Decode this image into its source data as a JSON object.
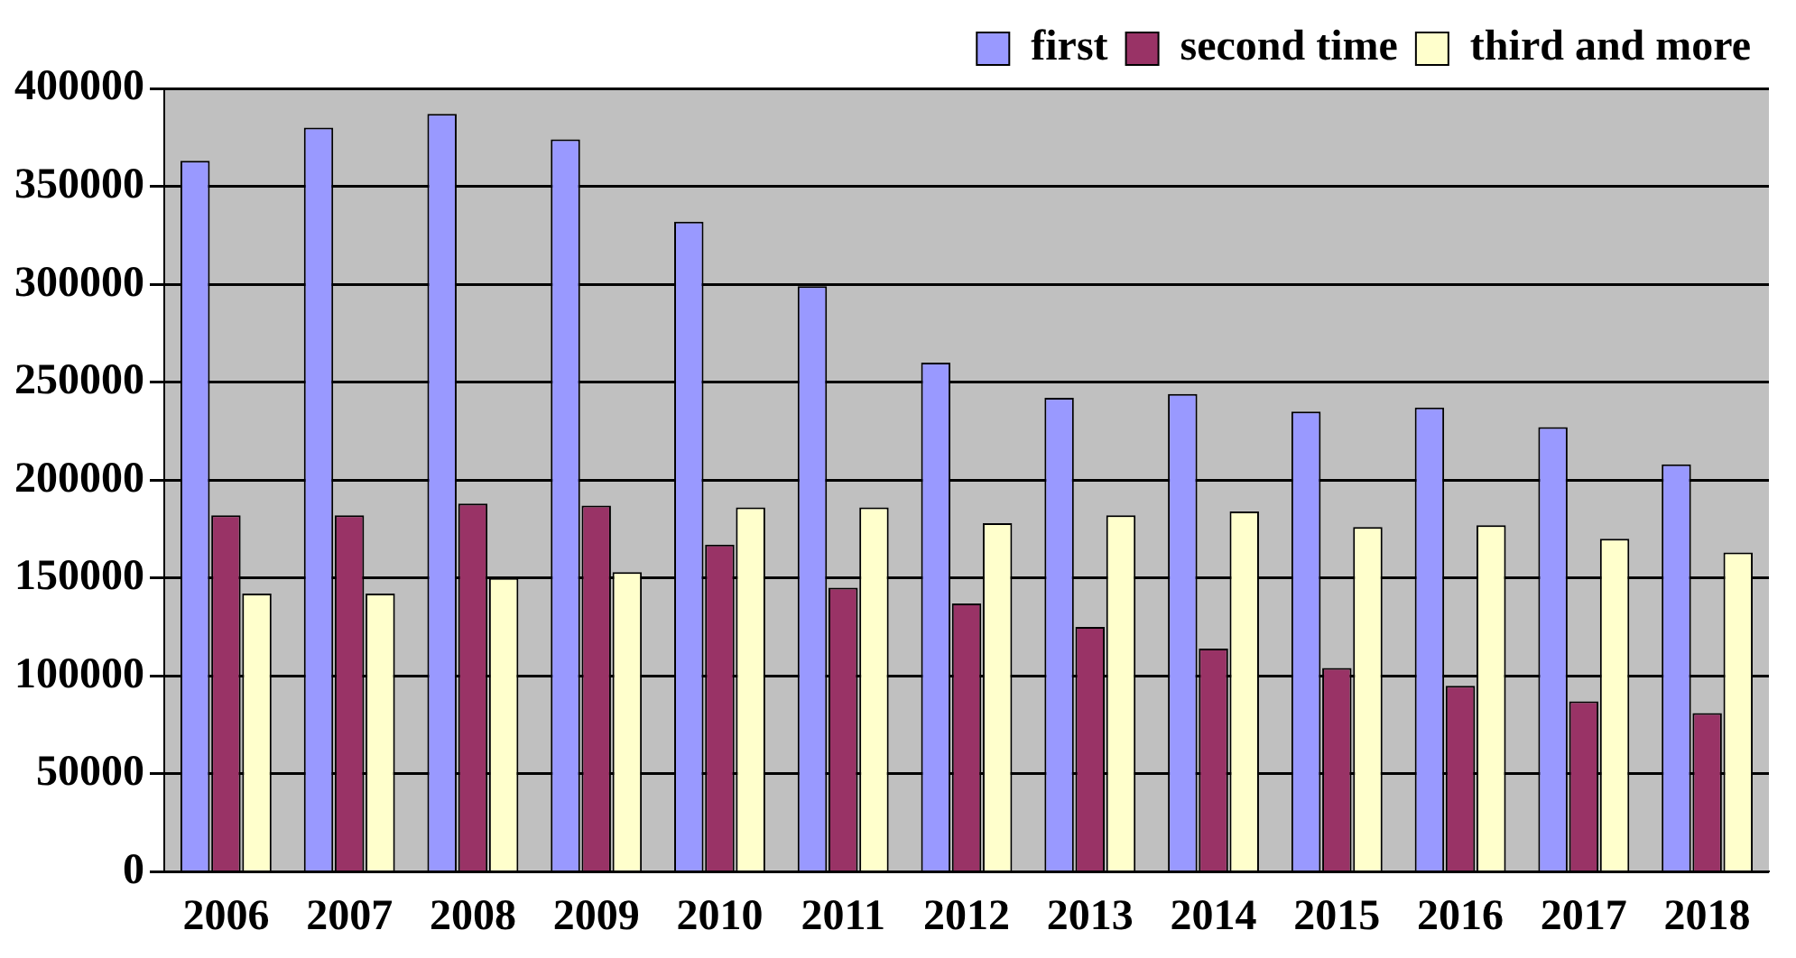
{
  "chart_data": {
    "type": "bar",
    "categories": [
      "2006",
      "2007",
      "2008",
      "2009",
      "2010",
      "2011",
      "2012",
      "2013",
      "2014",
      "2015",
      "2016",
      "2017",
      "2018"
    ],
    "series": [
      {
        "name": "first",
        "color": "#9999ff",
        "values": [
          363000,
          380000,
          387000,
          374000,
          332000,
          299000,
          260000,
          242000,
          244000,
          235000,
          237000,
          227000,
          208000
        ]
      },
      {
        "name": "second time",
        "color": "#993366",
        "values": [
          182000,
          182000,
          188000,
          187000,
          167000,
          145000,
          137000,
          125000,
          114000,
          104000,
          95000,
          87000,
          81000
        ]
      },
      {
        "name": "third and more",
        "color": "#ffffcc",
        "values": [
          142000,
          142000,
          150000,
          153000,
          186000,
          186000,
          178000,
          182000,
          184000,
          176000,
          177000,
          170000,
          163000
        ]
      }
    ],
    "ylim": [
      0,
      400000
    ],
    "yticks": [
      0,
      50000,
      100000,
      150000,
      200000,
      250000,
      300000,
      350000,
      400000
    ],
    "grid": "y",
    "legend": "top right"
  }
}
